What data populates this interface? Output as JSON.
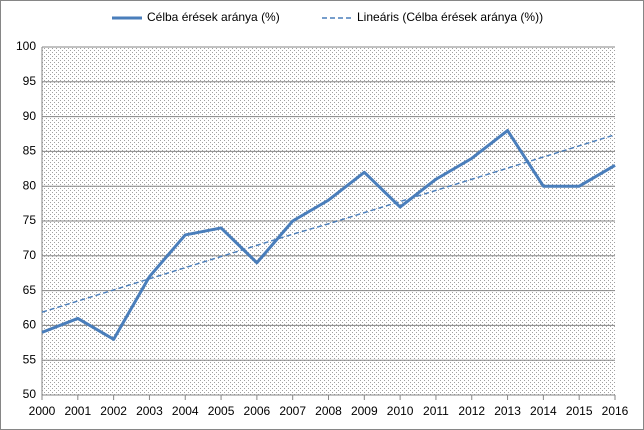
{
  "chart_data": {
    "type": "line",
    "x": [
      2000,
      2001,
      2002,
      2003,
      2004,
      2005,
      2006,
      2007,
      2008,
      2009,
      2010,
      2011,
      2012,
      2013,
      2014,
      2015,
      2016
    ],
    "series": [
      {
        "name": "Célba érések aránya (%)",
        "color": "#4a7ebb",
        "dashed": false,
        "values": [
          59,
          61,
          58,
          67,
          73,
          74,
          69,
          75,
          78,
          82,
          77,
          81,
          84,
          88,
          80,
          80,
          83
        ]
      },
      {
        "name": "Lineáris (Célba érések aránya (%))",
        "color": "#4a7ebb",
        "dashed": true,
        "values": [
          61.9,
          63.5,
          65.1,
          66.7,
          68.3,
          69.9,
          71.5,
          73.1,
          74.6,
          76.2,
          77.8,
          79.4,
          81.0,
          82.6,
          84.2,
          85.8,
          87.4
        ]
      }
    ],
    "xlim": [
      2000,
      2016
    ],
    "xticks": [
      2000,
      2001,
      2002,
      2003,
      2004,
      2005,
      2006,
      2007,
      2008,
      2009,
      2010,
      2011,
      2012,
      2013,
      2014,
      2015,
      2016
    ],
    "ylim": [
      50,
      100
    ],
    "yticks": [
      50,
      55,
      60,
      65,
      70,
      75,
      80,
      85,
      90,
      95,
      100
    ],
    "grid": true,
    "legend": "top"
  }
}
